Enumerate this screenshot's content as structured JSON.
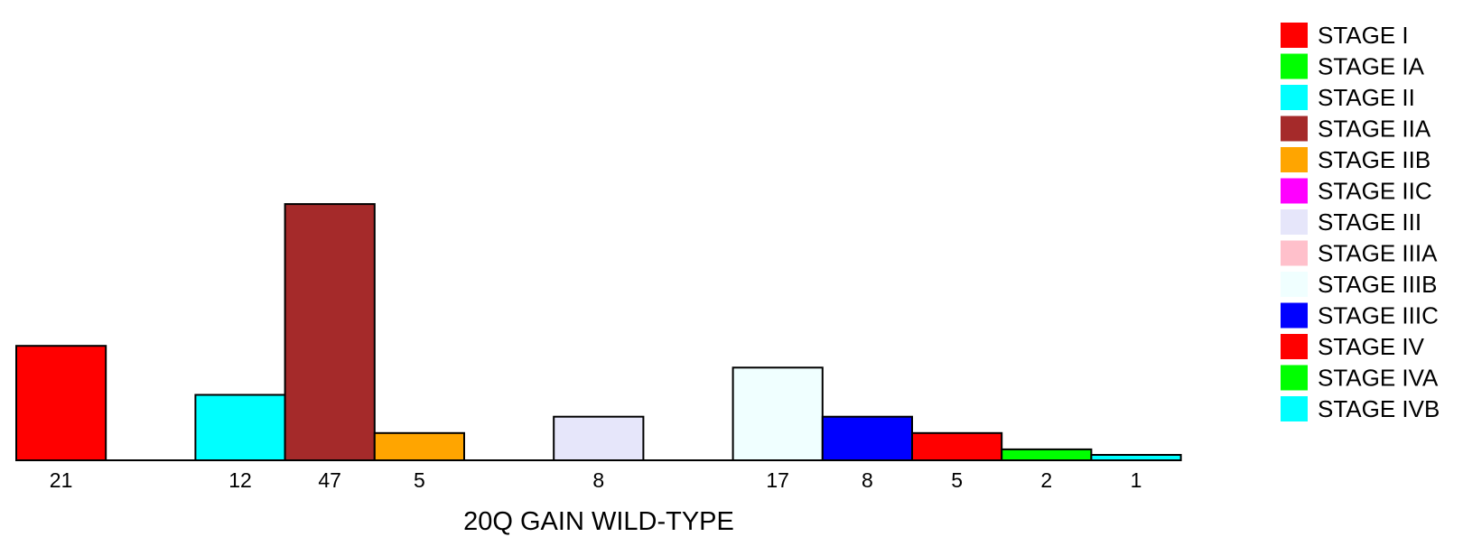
{
  "chart_data": {
    "type": "bar",
    "title": "",
    "xlabel": "20Q GAIN WILD-TYPE",
    "ylabel": "",
    "ylim": [
      0,
      50
    ],
    "grid": false,
    "legend_position": "right",
    "categories": [
      "STAGE I",
      "STAGE IA",
      "STAGE II",
      "STAGE IIA",
      "STAGE IIB",
      "STAGE IIC",
      "STAGE III",
      "STAGE IIIA",
      "STAGE IIIB",
      "STAGE IIIC",
      "STAGE IV",
      "STAGE IVA",
      "STAGE IVB"
    ],
    "values": [
      21,
      0,
      12,
      47,
      5,
      0,
      8,
      0,
      17,
      8,
      5,
      2,
      1
    ],
    "value_labels": [
      "21",
      "",
      "12",
      "47",
      "5",
      "",
      "8",
      "",
      "17",
      "8",
      "5",
      "2",
      "1"
    ],
    "colors": [
      "#ff0000",
      "#00ff00",
      "#00ffff",
      "#a52a2a",
      "#ffa500",
      "#ff00ff",
      "#e6e6fa",
      "#ffc0cb",
      "#f0ffff",
      "#0000ff",
      "#ff0000",
      "#00ff00",
      "#00ffff"
    ],
    "legend": [
      {
        "label": "STAGE I",
        "color": "#ff0000"
      },
      {
        "label": "STAGE IA",
        "color": "#00ff00"
      },
      {
        "label": "STAGE II",
        "color": "#00ffff"
      },
      {
        "label": "STAGE IIA",
        "color": "#a52a2a"
      },
      {
        "label": "STAGE IIB",
        "color": "#ffa500"
      },
      {
        "label": "STAGE IIC",
        "color": "#ff00ff"
      },
      {
        "label": "STAGE III",
        "color": "#e6e6fa"
      },
      {
        "label": "STAGE IIIA",
        "color": "#ffc0cb"
      },
      {
        "label": "STAGE IIIB",
        "color": "#f0ffff"
      },
      {
        "label": "STAGE IIIC",
        "color": "#0000ff"
      },
      {
        "label": "STAGE IV",
        "color": "#ff0000"
      },
      {
        "label": "STAGE IVA",
        "color": "#00ff00"
      },
      {
        "label": "STAGE IVB",
        "color": "#00ffff"
      }
    ]
  }
}
